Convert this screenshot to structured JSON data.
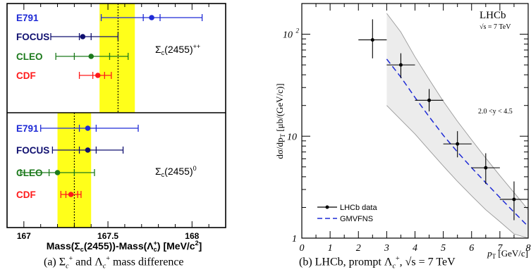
{
  "chart_data": [
    {
      "type": "scatter",
      "panels": [
        {
          "label": "Σ_c(2455)^{++}",
          "label_main": "Σ",
          "label_sub": "c",
          "label_mid": "(2455)",
          "label_sup": "++",
          "band": [
            167.45,
            167.66
          ],
          "dotted_line": 167.56,
          "points": [
            {
              "experiment": "E791",
              "color": "#1f2bd6",
              "value": 167.76,
              "stat": [
                167.71,
                167.81
              ],
              "total": [
                167.46,
                168.06
              ]
            },
            {
              "experiment": "FOCUS",
              "color": "#101070",
              "value": 167.35,
              "stat": [
                167.33,
                167.4
              ],
              "total": [
                167.16,
                167.56
              ]
            },
            {
              "experiment": "CLEO",
              "color": "#1c7a1c",
              "value": 167.4,
              "stat": [
                167.3,
                167.51
              ],
              "total": [
                167.19,
                167.62
              ]
            },
            {
              "experiment": "CDF",
              "color": "#ff1a1a",
              "value": 167.44,
              "stat": [
                167.41,
                167.48
              ],
              "total": [
                167.33,
                167.52
              ]
            }
          ]
        },
        {
          "label": "Σ_c(2455)^0",
          "label_main": "Σ",
          "label_sub": "c",
          "label_mid": "(2455)",
          "label_sup": "0",
          "band": [
            167.2,
            167.4
          ],
          "dotted_line": 167.3,
          "points": [
            {
              "experiment": "E791",
              "color": "#1f2bd6",
              "value": 167.38,
              "stat": [
                167.33,
                167.43
              ],
              "total": [
                167.1,
                167.68
              ]
            },
            {
              "experiment": "FOCUS",
              "color": "#101070",
              "value": 167.38,
              "stat": [
                167.33,
                167.43
              ],
              "total": [
                167.17,
                167.59
              ]
            },
            {
              "experiment": "CLEO",
              "color": "#1c7a1c",
              "value": 167.2,
              "stat": [
                167.15,
                167.3
              ],
              "total": [
                166.98,
                167.42
              ]
            },
            {
              "experiment": "CDF",
              "color": "#ff1a1a",
              "value": 167.28,
              "stat": [
                167.25,
                167.32
              ],
              "total": [
                167.22,
                167.34
              ]
            }
          ]
        }
      ],
      "xlim": [
        166.9,
        168.2
      ],
      "xticks": [
        "167",
        "167.5",
        "168"
      ],
      "xtick_values": [
        167,
        167.5,
        168
      ],
      "xlabel": "Mass(Σc(2455))-Mass(Λc+) [MeV/c2]",
      "xlabel_parts": {
        "a": "Mass(",
        "b": "Σ",
        "c": "c",
        "d": "(2455))-Mass(",
        "e": "Λ",
        "f": "c",
        "g": "+",
        "h": ") [MeV/c",
        "i": "2",
        "j": "]"
      },
      "caption": "(a) Σc+ and Λc+ mass difference",
      "caption_parts": {
        "label": "(a) ",
        "sigma": "Σ",
        "sigma_sub": "c",
        "sigma_sup": "+",
        "mid": " and ",
        "lambda": "Λ",
        "lambda_sub": "c",
        "lambda_sup": "+",
        "tail": " mass difference"
      }
    },
    {
      "type": "scatter",
      "log_y": true,
      "xlim": [
        0,
        8
      ],
      "ylim": [
        1,
        200
      ],
      "xticks": [
        "0",
        "1",
        "2",
        "3",
        "4",
        "5",
        "6",
        "7",
        "8"
      ],
      "xtick_values": [
        0,
        1,
        2,
        3,
        4,
        5,
        6,
        7,
        8
      ],
      "yticks": [
        "1",
        "10",
        "10"
      ],
      "ytick_values": [
        1,
        10,
        100
      ],
      "ytick_sup": "2",
      "xlabel": "pT [GeV/c]",
      "xlabel_parts": {
        "p": "p",
        "sub": "T",
        "unit": " [GeV/c]"
      },
      "ylabel": "dσ/dpT [μb/(GeV/c)]",
      "ylabel_parts": {
        "a": "dσ/dp",
        "sub": "T",
        "b": " [μb/(GeV/c)]"
      },
      "experiment_label": "LHCb",
      "energy_label": "√s = 7 TeV",
      "rapidity_label": "2.0 <y < 4.5",
      "legend": {
        "placement": "bottom-left",
        "data": "LHCb data",
        "theory": "GMVFNS"
      },
      "data_points": [
        {
          "x": 2.5,
          "x_err": 0.5,
          "y": 88,
          "y_low": 58,
          "y_high": 140
        },
        {
          "x": 3.5,
          "x_err": 0.5,
          "y": 50,
          "y_low": 37,
          "y_high": 65
        },
        {
          "x": 4.5,
          "x_err": 0.5,
          "y": 22.5,
          "y_low": 17.5,
          "y_high": 29
        },
        {
          "x": 5.5,
          "x_err": 0.5,
          "y": 8.4,
          "y_low": 6.2,
          "y_high": 11.2
        },
        {
          "x": 6.5,
          "x_err": 0.5,
          "y": 4.9,
          "y_low": 3.4,
          "y_high": 6.8
        },
        {
          "x": 7.5,
          "x_err": 0.5,
          "y": 2.4,
          "y_low": 1.5,
          "y_high": 3.6
        }
      ],
      "theory_central": {
        "x": [
          3,
          3.5,
          4,
          4.5,
          5,
          5.5,
          6,
          6.5,
          7,
          7.5,
          8
        ],
        "y": [
          57,
          38,
          24,
          15.5,
          10.2,
          7,
          4.9,
          3.5,
          2.5,
          1.8,
          1.3
        ]
      },
      "theory_upper": {
        "x": [
          3,
          3.5,
          4,
          4.5,
          5,
          5.5,
          6,
          6.5,
          7,
          7.5,
          8
        ],
        "y": [
          160,
          105,
          60,
          36,
          22,
          14,
          9.2,
          6.1,
          4.1,
          2.8,
          1.9
        ]
      },
      "theory_lower": {
        "x": [
          3,
          3.5,
          4,
          4.5,
          5,
          5.5,
          6,
          6.5,
          7,
          7.5,
          8
        ],
        "y": [
          20,
          14.5,
          10.5,
          7.3,
          5.1,
          3.6,
          2.6,
          1.9,
          1.45,
          1.1,
          0.9
        ]
      },
      "caption": "(b) LHCb, prompt Λc+, √s = 7 TeV",
      "caption_parts": {
        "label": "(b) LHCb, prompt ",
        "lambda": "Λ",
        "lambda_sub": "c",
        "lambda_sup": "+",
        "energy": ", √s = 7 TeV"
      }
    }
  ]
}
